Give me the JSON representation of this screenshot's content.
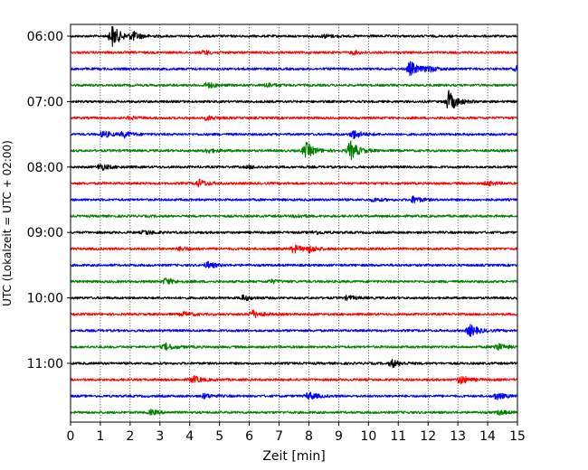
{
  "chart_data": {
    "type": "line",
    "title": "",
    "xlabel": "Zeit  [min]",
    "ylabel": "UTC (Lokalzeit = UTC + 02:00)",
    "xlim": [
      0,
      15
    ],
    "x_ticks": [
      "0",
      "1",
      "2",
      "3",
      "4",
      "5",
      "6",
      "7",
      "8",
      "9",
      "10",
      "11",
      "12",
      "13",
      "14",
      "15"
    ],
    "y_ticks": [
      "06:00",
      "07:00",
      "08:00",
      "09:00",
      "10:00",
      "11:00"
    ],
    "grid": "vertical dotted at each minute",
    "colors_cycle": [
      "#000000",
      "#ff0000",
      "#0000ff",
      "#008000"
    ],
    "traces": [
      {
        "time": "06:00",
        "color": "#000000",
        "events": [
          {
            "t": 1.4,
            "amp": 1.0
          },
          {
            "t": 2.1,
            "amp": 0.35
          },
          {
            "t": 8.5,
            "amp": 0.15
          }
        ]
      },
      {
        "time": "06:15",
        "color": "#ff0000",
        "events": [
          {
            "t": 4.5,
            "amp": 0.18
          },
          {
            "t": 9.5,
            "amp": 0.15
          }
        ]
      },
      {
        "time": "06:30",
        "color": "#0000ff",
        "events": [
          {
            "t": 11.4,
            "amp": 0.65
          },
          {
            "t": 12.0,
            "amp": 0.25
          },
          {
            "t": 15.0,
            "amp": 0.3
          }
        ]
      },
      {
        "time": "06:45",
        "color": "#008000",
        "events": [
          {
            "t": 4.6,
            "amp": 0.25
          },
          {
            "t": 6.6,
            "amp": 0.2
          }
        ]
      },
      {
        "time": "07:00",
        "color": "#000000",
        "events": [
          {
            "t": 12.7,
            "amp": 0.95
          }
        ]
      },
      {
        "time": "07:15",
        "color": "#ff0000",
        "events": [
          {
            "t": 4.6,
            "amp": 0.2
          },
          {
            "t": 2.0,
            "amp": 0.12
          }
        ]
      },
      {
        "time": "07:30",
        "color": "#0000ff",
        "events": [
          {
            "t": 1.1,
            "amp": 0.3
          },
          {
            "t": 1.8,
            "amp": 0.25
          },
          {
            "t": 9.5,
            "amp": 0.4
          }
        ]
      },
      {
        "time": "07:45",
        "color": "#008000",
        "events": [
          {
            "t": 7.9,
            "amp": 0.75
          },
          {
            "t": 9.4,
            "amp": 0.85
          },
          {
            "t": 4.6,
            "amp": 0.2
          }
        ]
      },
      {
        "time": "08:00",
        "color": "#000000",
        "events": [
          {
            "t": 1.0,
            "amp": 0.3
          },
          {
            "t": 6.0,
            "amp": 0.12
          }
        ]
      },
      {
        "time": "08:15",
        "color": "#ff0000",
        "events": [
          {
            "t": 4.3,
            "amp": 0.35
          },
          {
            "t": 14.0,
            "amp": 0.2
          }
        ]
      },
      {
        "time": "08:30",
        "color": "#0000ff",
        "events": [
          {
            "t": 11.5,
            "amp": 0.3
          },
          {
            "t": 10.2,
            "amp": 0.15
          }
        ]
      },
      {
        "time": "08:45",
        "color": "#008000",
        "events": [
          {
            "t": 7.6,
            "amp": 0.15
          }
        ]
      },
      {
        "time": "09:00",
        "color": "#000000",
        "events": [
          {
            "t": 2.5,
            "amp": 0.2
          },
          {
            "t": 8.2,
            "amp": 0.15
          }
        ]
      },
      {
        "time": "09:15",
        "color": "#ff0000",
        "events": [
          {
            "t": 7.5,
            "amp": 0.35
          },
          {
            "t": 8.0,
            "amp": 0.3
          },
          {
            "t": 3.7,
            "amp": 0.2
          }
        ]
      },
      {
        "time": "09:30",
        "color": "#0000ff",
        "events": [
          {
            "t": 4.6,
            "amp": 0.3
          }
        ]
      },
      {
        "time": "09:45",
        "color": "#008000",
        "events": [
          {
            "t": 3.2,
            "amp": 0.3
          },
          {
            "t": 6.7,
            "amp": 0.15
          }
        ]
      },
      {
        "time": "10:00",
        "color": "#000000",
        "events": [
          {
            "t": 5.8,
            "amp": 0.25
          },
          {
            "t": 9.3,
            "amp": 0.2
          }
        ]
      },
      {
        "time": "10:15",
        "color": "#ff0000",
        "events": [
          {
            "t": 6.1,
            "amp": 0.35
          },
          {
            "t": 3.8,
            "amp": 0.2
          }
        ]
      },
      {
        "time": "10:30",
        "color": "#0000ff",
        "events": [
          {
            "t": 13.4,
            "amp": 0.55
          }
        ]
      },
      {
        "time": "10:45",
        "color": "#008000",
        "events": [
          {
            "t": 3.2,
            "amp": 0.3
          },
          {
            "t": 14.3,
            "amp": 0.35
          }
        ]
      },
      {
        "time": "11:00",
        "color": "#000000",
        "events": [
          {
            "t": 10.8,
            "amp": 0.35
          }
        ]
      },
      {
        "time": "11:15",
        "color": "#ff0000",
        "events": [
          {
            "t": 4.1,
            "amp": 0.35
          },
          {
            "t": 13.1,
            "amp": 0.4
          }
        ]
      },
      {
        "time": "11:30",
        "color": "#0000ff",
        "events": [
          {
            "t": 8.0,
            "amp": 0.35
          },
          {
            "t": 4.5,
            "amp": 0.2
          },
          {
            "t": 14.3,
            "amp": 0.3
          }
        ]
      },
      {
        "time": "11:45",
        "color": "#008000",
        "events": [
          {
            "t": 2.7,
            "amp": 0.2
          },
          {
            "t": 14.4,
            "amp": 0.2
          }
        ]
      }
    ]
  }
}
